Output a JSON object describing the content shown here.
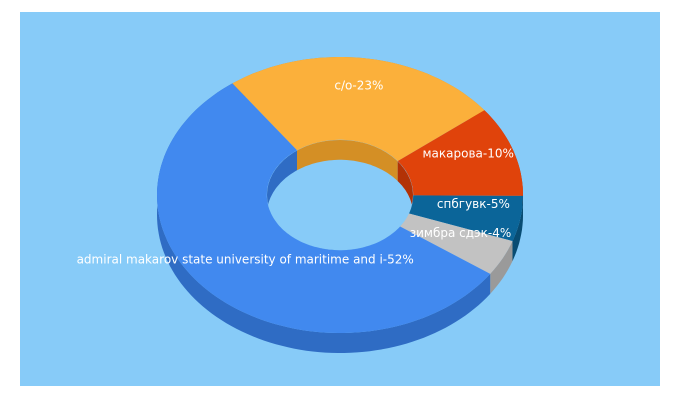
{
  "chart_data": {
    "type": "donut3d",
    "values": [
      23,
      10,
      5,
      4,
      52
    ],
    "value_labels": [
      "с/о-23%",
      "макарова-10%",
      "спбгувк-5%",
      "зимбра сдэк-4%",
      "admiral makarov state university of maritime and i-52%"
    ],
    "colors": [
      "#fbb03b",
      "#e0430b",
      "#0b6599",
      "#c2c2c2",
      "#4189ef"
    ],
    "side_colors": [
      "#d48f25",
      "#b23206",
      "#084c73",
      "#9a9a9a",
      "#2f6cc4"
    ]
  }
}
